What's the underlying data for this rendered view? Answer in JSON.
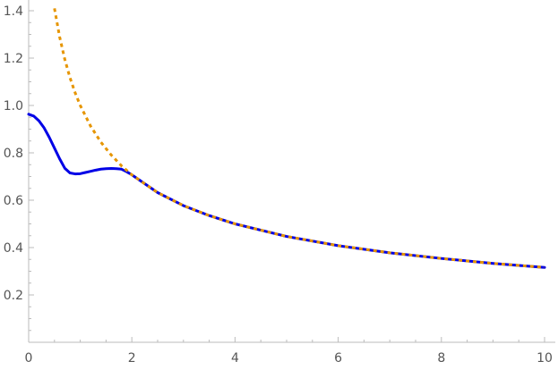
{
  "chart_data": {
    "type": "line",
    "title": "",
    "xlabel": "",
    "ylabel": "",
    "xlim": [
      0,
      10
    ],
    "ylim": [
      0,
      1.4
    ],
    "x_ticks": [
      0,
      2,
      4,
      6,
      8,
      10
    ],
    "x_tick_labels": [
      "0",
      "2",
      "4",
      "6",
      "8",
      "10"
    ],
    "y_ticks": [
      0.2,
      0.4,
      0.6,
      0.8,
      1.0,
      1.2,
      1.4
    ],
    "y_tick_labels": [
      "0.2",
      "0.4",
      "0.6",
      "0.8",
      "1.0",
      "1.2",
      "1.4"
    ],
    "grid": false,
    "series": [
      {
        "color": "#e69500",
        "style": "dashed",
        "x": [
          0.5,
          0.6,
          0.7,
          0.8,
          0.9,
          1.0,
          1.2,
          1.4,
          1.6,
          1.8,
          2.0,
          2.5,
          3.0,
          3.5,
          4.0,
          5.0,
          6.0,
          7.0,
          8.0,
          9.0,
          10.0
        ],
        "y": [
          1.41,
          1.29,
          1.195,
          1.118,
          1.054,
          1.0,
          0.913,
          0.845,
          0.791,
          0.745,
          0.707,
          0.632,
          0.577,
          0.535,
          0.5,
          0.447,
          0.408,
          0.378,
          0.354,
          0.333,
          0.316
        ]
      },
      {
        "color": "#0000e6",
        "style": "solid",
        "x": [
          0.0,
          0.1,
          0.2,
          0.3,
          0.4,
          0.5,
          0.6,
          0.7,
          0.75,
          0.8,
          0.9,
          1.0,
          1.1,
          1.2,
          1.3,
          1.4,
          1.5,
          1.6,
          1.7,
          1.8,
          1.9,
          2.0,
          2.5,
          3.0,
          3.5,
          4.0,
          5.0,
          6.0,
          7.0,
          8.0,
          9.0,
          10.0
        ],
        "y": [
          0.963,
          0.955,
          0.935,
          0.905,
          0.865,
          0.82,
          0.775,
          0.735,
          0.725,
          0.715,
          0.711,
          0.712,
          0.717,
          0.722,
          0.727,
          0.731,
          0.733,
          0.734,
          0.733,
          0.731,
          0.72,
          0.707,
          0.632,
          0.577,
          0.535,
          0.5,
          0.447,
          0.408,
          0.378,
          0.354,
          0.333,
          0.316
        ]
      }
    ]
  }
}
